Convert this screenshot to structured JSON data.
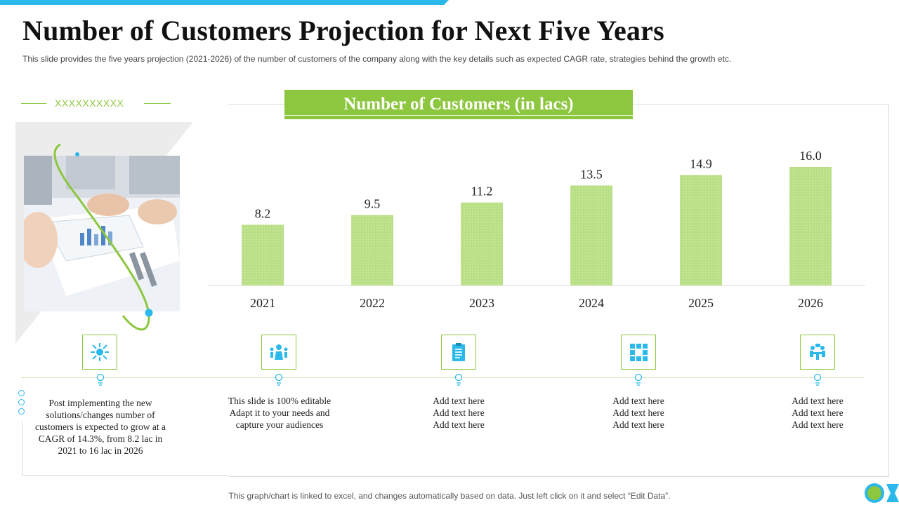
{
  "header": {
    "title": "Number of Customers Projection for Next Five Years",
    "subtitle": "This slide provides  the five  years projection (2021-2026)  of the number of customers of the company along with the key details such as expected CAGR rate, strategies behind the growth etc."
  },
  "side": {
    "placeholder": "XXXXXXXXXX"
  },
  "chart_data": {
    "type": "bar",
    "title": "Number of Customers (in lacs)",
    "categories": [
      "2021",
      "2022",
      "2023",
      "2024",
      "2025",
      "2026"
    ],
    "values": [
      8.2,
      9.5,
      11.2,
      13.5,
      14.9,
      16.0
    ],
    "value_labels": [
      "8.2",
      "9.5",
      "11.2",
      "13.5",
      "14.9",
      "16.0"
    ],
    "xlabel": "",
    "ylabel": "",
    "ylim": [
      0,
      16
    ],
    "grid": false,
    "bar_color": "#b4de7c"
  },
  "details": [
    {
      "icon": "gear-network-icon",
      "text": "Post implementing the new solutions/changes number of customers is expected to grow at a CAGR of 14.3%, from 8.2 lac in 2021 to 16 lac in 2026"
    },
    {
      "icon": "team-icon",
      "text": "This slide is 100% editable Adapt it to your needs and capture your audiences"
    },
    {
      "icon": "clipboard-icon",
      "text": "Add text here Add text here Add text here"
    },
    {
      "icon": "blocks-icon",
      "text": "Add text here Add text here Add text here"
    },
    {
      "icon": "meeting-icon",
      "text": "Add text here Add text here Add text here"
    }
  ],
  "footer": {
    "note": "This graph/chart is linked to excel, and changes automatically based on data. Just left click on it and select “Edit Data”."
  },
  "colors": {
    "accent_green": "#8dc63f",
    "accent_blue": "#2bb8ea"
  }
}
